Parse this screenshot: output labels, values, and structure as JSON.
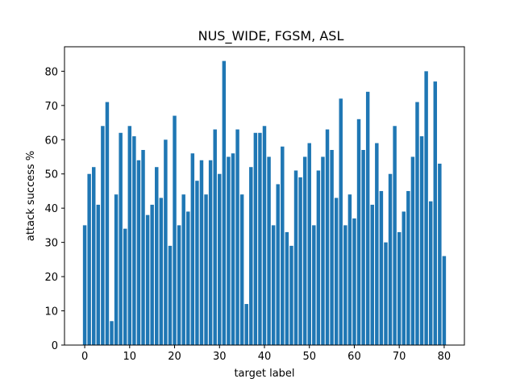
{
  "chart_data": {
    "type": "bar",
    "title": "NUS_WIDE, FGSM, ASL",
    "xlabel": "target label",
    "ylabel": "attack success %",
    "x": [
      0,
      1,
      2,
      3,
      4,
      5,
      6,
      7,
      8,
      9,
      10,
      11,
      12,
      13,
      14,
      15,
      16,
      17,
      18,
      19,
      20,
      21,
      22,
      23,
      24,
      25,
      26,
      27,
      28,
      29,
      30,
      31,
      32,
      33,
      34,
      35,
      36,
      37,
      38,
      39,
      40,
      41,
      42,
      43,
      44,
      45,
      46,
      47,
      48,
      49,
      50,
      51,
      52,
      53,
      54,
      55,
      56,
      57,
      58,
      59,
      60,
      61,
      62,
      63,
      64,
      65,
      66,
      67,
      68,
      69,
      70,
      71,
      72,
      73,
      74,
      75,
      76,
      77,
      78,
      79,
      80
    ],
    "values": [
      35,
      50,
      52,
      41,
      64,
      71,
      7,
      44,
      62,
      34,
      64,
      61,
      54,
      57,
      38,
      41,
      52,
      43,
      60,
      29,
      67,
      35,
      44,
      39,
      56,
      48,
      54,
      44,
      54,
      63,
      50,
      83,
      55,
      56,
      63,
      44,
      12,
      52,
      62,
      62,
      64,
      55,
      35,
      47,
      58,
      33,
      29,
      51,
      49,
      55,
      59,
      35,
      51,
      55,
      63,
      57,
      43,
      72,
      35,
      44,
      37,
      66,
      57,
      74,
      41,
      59,
      45,
      30,
      50,
      64,
      33,
      39,
      45,
      55,
      71,
      61,
      80,
      42,
      77,
      53,
      26
    ],
    "xlim": [
      -4.5,
      84.5
    ],
    "ylim": [
      0,
      87.15
    ],
    "xticks": [
      0,
      10,
      20,
      30,
      40,
      50,
      60,
      70,
      80
    ],
    "yticks": [
      0,
      10,
      20,
      30,
      40,
      50,
      60,
      70,
      80
    ],
    "bar_color": "#1f77b4",
    "grid": false
  }
}
